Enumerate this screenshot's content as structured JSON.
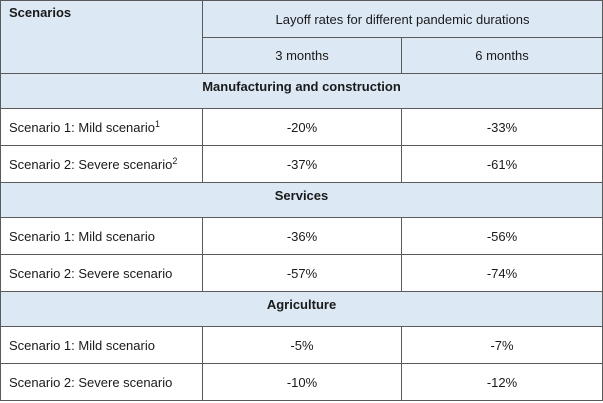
{
  "table": {
    "header": {
      "scenarios_label": "Scenarios",
      "group_label": "Layoff rates for different pandemic durations",
      "col_3m": "3 months",
      "col_6m": "6 months"
    },
    "sections": [
      {
        "title": "Manufacturing and construction",
        "rows": [
          {
            "label": "Scenario 1: Mild scenario",
            "footnote": "1",
            "m3": "-20%",
            "m6": "-33%"
          },
          {
            "label": "Scenario 2: Severe scenario",
            "footnote": "2",
            "m3": "-37%",
            "m6": "-61%"
          }
        ]
      },
      {
        "title": "Services",
        "rows": [
          {
            "label": "Scenario 1: Mild scenario",
            "m3": "-36%",
            "m6": "-56%"
          },
          {
            "label": "Scenario 2: Severe scenario",
            "m3": "-57%",
            "m6": "-74%"
          }
        ]
      },
      {
        "title": "Agriculture",
        "rows": [
          {
            "label": "Scenario 1: Mild scenario",
            "m3": "-5%",
            "m6": "-7%"
          },
          {
            "label": "Scenario 2: Severe scenario",
            "m3": "-10%",
            "m6": "-12%"
          }
        ]
      }
    ]
  }
}
